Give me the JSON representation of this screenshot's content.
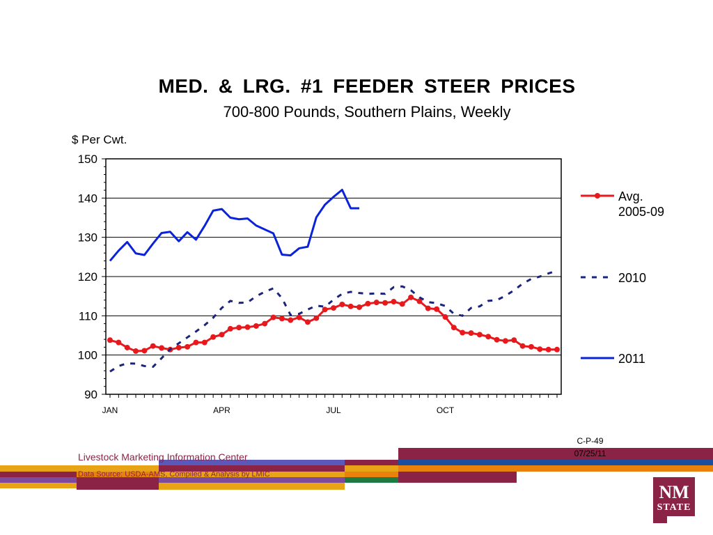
{
  "chart_data": {
    "type": "line",
    "title": "MED.  &  LRG.  #1  FEEDER  STEER  PRICES",
    "subtitle": "700-800 Pounds, Southern Plains, Weekly",
    "ylabel": "$ Per Cwt.",
    "ylim": [
      90,
      150
    ],
    "yticks": [
      90,
      100,
      110,
      120,
      130,
      140,
      150
    ],
    "xlim": [
      1,
      53
    ],
    "xticks": [
      {
        "week": 1,
        "label": "JAN"
      },
      {
        "week": 14,
        "label": "APR"
      },
      {
        "week": 27,
        "label": "JUL"
      },
      {
        "week": 40,
        "label": "OCT"
      }
    ],
    "grid": true,
    "legend_position": "right",
    "series": [
      {
        "name": "Avg.\n2005-09",
        "style": "solid-markers",
        "color": "#e8191d",
        "x": [
          1,
          2,
          3,
          4,
          5,
          6,
          7,
          8,
          9,
          10,
          11,
          12,
          13,
          14,
          15,
          16,
          17,
          18,
          19,
          20,
          21,
          22,
          23,
          24,
          25,
          26,
          27,
          28,
          29,
          30,
          31,
          32,
          33,
          34,
          35,
          36,
          37,
          38,
          39,
          40,
          41,
          42,
          43,
          44,
          45,
          46,
          47,
          48,
          49,
          50,
          51,
          52,
          53
        ],
        "values": [
          103.8,
          103.2,
          101.9,
          101.0,
          101.1,
          102.3,
          101.8,
          101.4,
          101.9,
          102.1,
          103.2,
          103.2,
          104.6,
          105.2,
          106.7,
          107.0,
          107.1,
          107.4,
          108.0,
          109.6,
          109.3,
          108.9,
          109.6,
          108.4,
          109.4,
          111.6,
          112.0,
          112.9,
          112.4,
          112.2,
          113.1,
          113.4,
          113.3,
          113.6,
          113.0,
          114.7,
          113.7,
          111.9,
          111.7,
          109.7,
          107.0,
          105.7,
          105.6,
          105.2,
          104.7,
          103.9,
          103.6,
          103.8,
          102.3,
          102.1,
          101.5,
          101.4,
          101.4
        ]
      },
      {
        "name": "2010",
        "style": "dashed",
        "color": "#1a237e",
        "x": [
          1,
          2,
          3,
          4,
          5,
          6,
          7,
          8,
          9,
          10,
          11,
          12,
          13,
          14,
          15,
          16,
          17,
          18,
          19,
          20,
          21,
          22,
          23,
          24,
          25,
          26,
          27,
          28,
          29,
          30,
          31,
          32,
          33,
          34,
          35,
          36,
          37,
          38,
          39,
          40,
          41,
          42,
          43,
          44,
          45,
          46,
          47,
          48,
          49,
          50,
          51,
          52,
          53
        ],
        "values": [
          95.8,
          97.2,
          97.9,
          97.8,
          97.2,
          97.0,
          99.2,
          101.5,
          103.0,
          104.5,
          106.0,
          107.6,
          109.5,
          112.0,
          113.8,
          113.3,
          113.4,
          115.0,
          116.1,
          117.0,
          114.5,
          110.2,
          110.5,
          111.6,
          112.6,
          112.3,
          114.1,
          115.6,
          116.1,
          115.8,
          115.6,
          115.7,
          115.6,
          117.3,
          117.5,
          116.5,
          114.7,
          113.5,
          113.2,
          112.5,
          110.5,
          110.0,
          112.0,
          112.4,
          113.8,
          114.0,
          115.1,
          116.5,
          118.2,
          119.4,
          120.0,
          120.8,
          121.5
        ]
      },
      {
        "name": "2011",
        "style": "solid",
        "color": "#0a23d9",
        "x": [
          1,
          2,
          3,
          4,
          5,
          6,
          7,
          8,
          9,
          10,
          11,
          12,
          13,
          14,
          15,
          16,
          17,
          18,
          19,
          20,
          21,
          22,
          23,
          24,
          25,
          26,
          27,
          28,
          29,
          30
        ],
        "values": [
          124.0,
          126.6,
          128.8,
          125.9,
          125.5,
          128.4,
          131.1,
          131.4,
          129.0,
          131.3,
          129.4,
          132.9,
          136.8,
          137.2,
          135.0,
          134.6,
          134.8,
          133.0,
          132.0,
          131.0,
          125.6,
          125.4,
          127.2,
          127.6,
          135.1,
          138.3,
          140.3,
          142.1,
          137.4,
          137.4
        ]
      }
    ]
  },
  "footer": {
    "code": "C-P-49",
    "date": "07/25/11",
    "org": "Livestock Marketing Information Center",
    "source": "Data Source:  USDA-AMS, Compiled & Analysis by LMIC",
    "logo_text_1": "NM",
    "logo_text_2": "STATE"
  },
  "colors": {
    "maroon": "#8b2346",
    "orange": "#e8820d",
    "purple": "#7d4a9e",
    "blue": "#1a4fa0",
    "green": "#1e7a43",
    "gold": "#e8a317"
  }
}
